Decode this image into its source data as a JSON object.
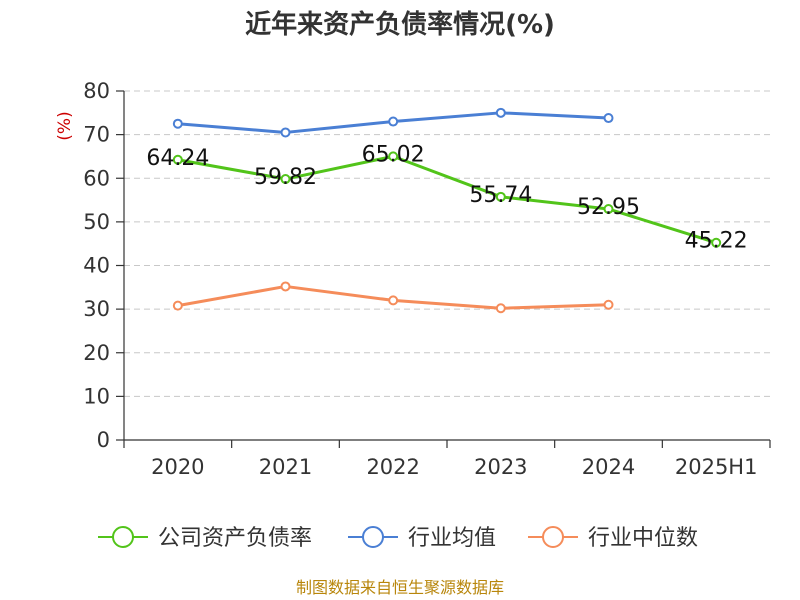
{
  "chart_data": {
    "type": "line",
    "title": "近年来资产负债率情况(%)",
    "y_unit": "(%)",
    "categories": [
      "2020",
      "2021",
      "2022",
      "2023",
      "2024",
      "2025H1"
    ],
    "ylim": [
      0,
      80
    ],
    "yticks": [
      0,
      10,
      20,
      30,
      40,
      50,
      60,
      70,
      80
    ],
    "grid": true,
    "legend_position": "bottom",
    "series": [
      {
        "name": "公司资产负债率",
        "color": "#52c41a",
        "values": [
          64.24,
          59.82,
          65.02,
          55.74,
          52.95,
          45.22
        ],
        "labels": [
          "64.24",
          "59.82",
          "65.02",
          "55.74",
          "52.95",
          "45.22"
        ]
      },
      {
        "name": "行业均值",
        "color": "#4a7fd4",
        "values": [
          72.5,
          70.5,
          73.0,
          75.0,
          73.8,
          null
        ]
      },
      {
        "name": "行业中位数",
        "color": "#f58c5a",
        "values": [
          30.8,
          35.2,
          32.0,
          30.2,
          31.0,
          null
        ]
      }
    ],
    "source": "制图数据来自恒生聚源数据库"
  }
}
